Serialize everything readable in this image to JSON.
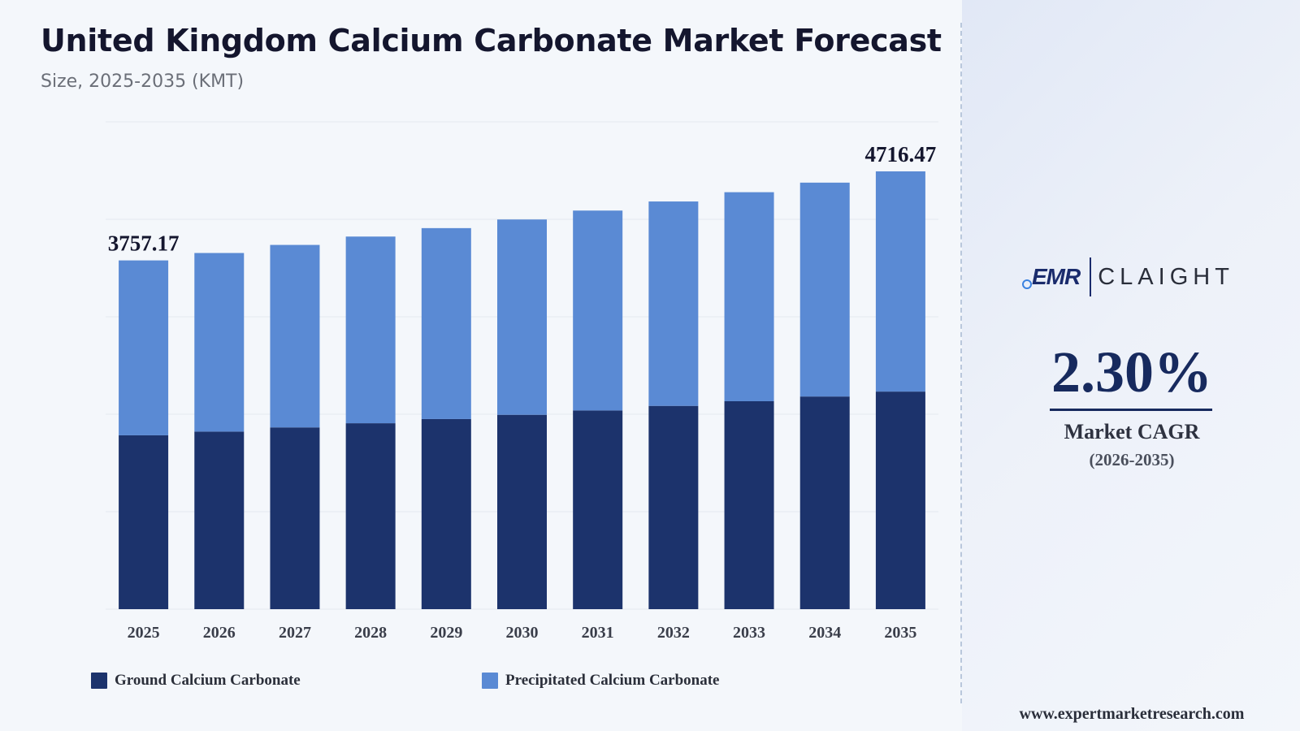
{
  "header": {
    "title": "United Kingdom Calcium Carbonate Market Forecast",
    "subtitle": "Size, 2025-2035 (KMT)"
  },
  "colors": {
    "ground": "#1c336c",
    "precipitated": "#5a8ad4",
    "accent": "#172a5e"
  },
  "chart_data": {
    "type": "bar",
    "stacked": true,
    "title": "United Kingdom Calcium Carbonate Market Forecast",
    "subtitle": "Size, 2025-2035 (KMT)",
    "categories": [
      "2025",
      "2026",
      "2027",
      "2028",
      "2029",
      "2030",
      "2031",
      "2032",
      "2033",
      "2034",
      "2035"
    ],
    "series": [
      {
        "name": "Ground Calcium Carbonate",
        "values": [
          1873,
          1913,
          1958,
          2003,
          2048,
          2094,
          2141,
          2190,
          2240,
          2291,
          2344
        ]
      },
      {
        "name": "Precipitated Calcium Carbonate",
        "values": [
          1884.17,
          1924,
          1966,
          2011,
          2057,
          2104,
          2153,
          2202,
          2252,
          2304,
          2372.47
        ]
      }
    ],
    "data_labels": [
      {
        "category": "2025",
        "text": "3757.17"
      },
      {
        "category": "2035",
        "text": "4716.47"
      }
    ],
    "ylim": [
      0,
      5250
    ],
    "grid": true,
    "legend_position": "bottom-left"
  },
  "legend": {
    "items": [
      {
        "label": "Ground Calcium Carbonate",
        "color": "#1c336c"
      },
      {
        "label": "Precipitated Calcium Carbonate",
        "color": "#5a8ad4"
      }
    ]
  },
  "sidebar": {
    "logo": {
      "emr": "EMR",
      "claight": "CLAIGHT"
    },
    "cagr": {
      "value": "2.30%",
      "label": "Market CAGR",
      "period": "(2026-2035)"
    },
    "website": "www.expertmarketresearch.com"
  }
}
